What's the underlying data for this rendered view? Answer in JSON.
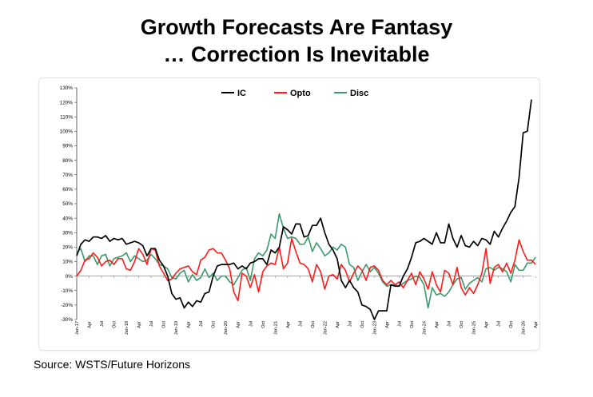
{
  "title_line1": "Growth Forecasts Are Fantasy",
  "title_line2": "… Correction Is Inevitable",
  "source": "Source: WSTS/Future Horizons",
  "chart_data": {
    "type": "line",
    "ylim": [
      -30,
      130
    ],
    "y_ticks": [
      "-30%",
      "-20%",
      "-10%",
      "0%",
      "10%",
      "20%",
      "30%",
      "40%",
      "50%",
      "60%",
      "70%",
      "80%",
      "90%",
      "100%",
      "110%",
      "120%",
      "130%"
    ],
    "x_tick_labels": [
      "Jan-17",
      "Apr",
      "Jul",
      "Oct",
      "Jan-18",
      "Apr",
      "Jul",
      "Oct",
      "Jan-19",
      "Apr",
      "Jul",
      "Oct",
      "Jan-20",
      "Apr",
      "Jul",
      "Oct",
      "Jan-21",
      "Apr",
      "Jul",
      "Oct",
      "Jan-22",
      "Apr",
      "Jul",
      "Oct",
      "Jan-23",
      "Apr",
      "Jul",
      "Oct",
      "Jan-24",
      "Apr",
      "Jul",
      "Oct",
      "Jan-25",
      "Apr",
      "Jul",
      "Oct",
      "Jan-26",
      "Apr"
    ],
    "legend_position": "top-center",
    "grid": false,
    "colors": {
      "IC": "#000000",
      "Opto": "#ff1a1a",
      "Disc": "#3a9a6a"
    },
    "series": [
      {
        "name": "IC",
        "values": [
          14,
          22,
          25,
          24,
          27,
          27,
          26,
          28,
          24,
          26,
          25,
          26,
          22,
          23,
          24,
          23,
          21,
          14,
          19,
          19,
          11,
          7,
          0,
          -12,
          -16,
          -15,
          -22,
          -18,
          -21,
          -17,
          -18,
          -12,
          -11,
          0,
          7,
          8,
          8,
          8,
          9,
          5,
          7,
          5,
          9,
          10,
          12,
          12,
          8,
          18,
          16,
          20,
          34,
          32,
          29,
          36,
          36,
          27,
          28,
          35,
          35,
          40,
          30,
          22,
          18,
          12,
          -3,
          -8,
          -3,
          -8,
          -11,
          -20,
          -21,
          -23,
          -30,
          -24,
          -24,
          -24,
          -6,
          -7,
          -7,
          0,
          5,
          13,
          23,
          24,
          26,
          24,
          22,
          30,
          23,
          23,
          36,
          26,
          20,
          28,
          21,
          20,
          24,
          21,
          26,
          25,
          22,
          31,
          27,
          33,
          38,
          44,
          48,
          68,
          99,
          100,
          122
        ]
      },
      {
        "name": "Opto",
        "values": [
          0,
          4,
          11,
          12,
          16,
          13,
          7,
          10,
          11,
          8,
          12,
          12,
          5,
          4,
          10,
          19,
          15,
          8,
          19,
          18,
          7,
          2,
          -3,
          -2,
          2,
          5,
          6,
          7,
          3,
          1,
          11,
          13,
          18,
          19,
          16,
          16,
          11,
          5,
          -11,
          -17,
          2,
          0,
          -8,
          1,
          -11,
          3,
          7,
          9,
          8,
          20,
          5,
          9,
          26,
          17,
          9,
          8,
          5,
          -4,
          8,
          3,
          -9,
          0,
          1,
          -2,
          8,
          4,
          -4,
          2,
          7,
          4,
          -3,
          6,
          7,
          4,
          -3,
          -6,
          -3,
          -6,
          -4,
          -8,
          -3,
          2,
          -6,
          3,
          -2,
          -9,
          3,
          -6,
          -11,
          4,
          2,
          -6,
          6,
          -8,
          -13,
          -8,
          -12,
          -6,
          2,
          19,
          -5,
          6,
          8,
          3,
          9,
          2,
          11,
          25,
          17,
          11,
          11,
          8
        ]
      },
      {
        "name": "Disc",
        "values": [
          16,
          19,
          10,
          14,
          14,
          8,
          14,
          15,
          7,
          12,
          13,
          14,
          16,
          10,
          14,
          12,
          10,
          11,
          15,
          12,
          8,
          7,
          5,
          -1,
          -2,
          2,
          4,
          -4,
          1,
          -3,
          -1,
          5,
          -1,
          2,
          -3,
          0,
          0,
          -4,
          -6,
          -1,
          4,
          6,
          -3,
          12,
          16,
          14,
          18,
          29,
          26,
          43,
          33,
          26,
          27,
          26,
          22,
          22,
          27,
          17,
          23,
          19,
          14,
          16,
          20,
          18,
          22,
          20,
          8,
          6,
          -3,
          3,
          8,
          3,
          6,
          2,
          -4,
          -7,
          -6,
          -6,
          -7,
          -5,
          -3,
          -2,
          0,
          -1,
          -6,
          -22,
          -8,
          -13,
          -12,
          -14,
          -11,
          -6,
          -2,
          -1,
          -9,
          -5,
          -3,
          -1,
          -4,
          5,
          6,
          4,
          6,
          5,
          3,
          -4,
          8,
          4,
          4,
          9,
          9,
          13
        ]
      }
    ]
  }
}
